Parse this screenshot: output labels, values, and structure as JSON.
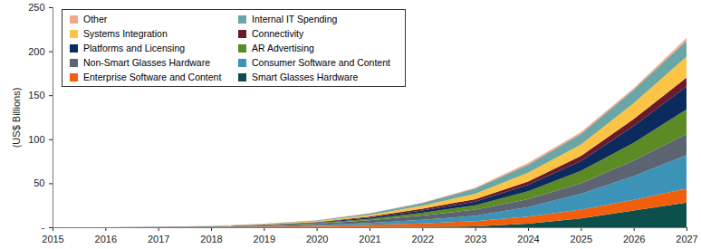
{
  "chart_data": {
    "type": "area",
    "stacked": true,
    "y_label": "(US$ Billions)",
    "x": [
      2015,
      2016,
      2017,
      2018,
      2019,
      2020,
      2021,
      2022,
      2023,
      2024,
      2025,
      2026,
      2027
    ],
    "xlim": [
      2015,
      2027
    ],
    "xticks": [
      2015,
      2016,
      2017,
      2018,
      2019,
      2020,
      2021,
      2022,
      2023,
      2024,
      2025,
      2026,
      2027
    ],
    "ylim": [
      0,
      250
    ],
    "yticks": [
      {
        "value": 0,
        "label": "-"
      },
      50,
      100,
      150,
      200,
      250
    ],
    "grid": false,
    "legend": "top-left",
    "series": [
      {
        "name": "Smart Glasses Hardware",
        "color": "#0d4f4b",
        "values": [
          0,
          0.01,
          0.02,
          0.05,
          0.1,
          0.2,
          0.3,
          0.5,
          1,
          4,
          10,
          19,
          28
        ]
      },
      {
        "name": "Enterprise Software and Content",
        "color": "#f25f0c",
        "values": [
          0,
          0.01,
          0.06,
          0.2,
          0.6,
          1.2,
          2.5,
          4,
          6,
          8,
          10,
          12,
          16
        ]
      },
      {
        "name": "Consumer Software and Content",
        "color": "#3b93b8",
        "values": [
          0,
          0.02,
          0.08,
          0.25,
          0.6,
          1.2,
          2.2,
          4,
          6,
          11,
          18,
          27,
          38
        ]
      },
      {
        "name": "Non-Smart Glasses Hardware",
        "color": "#5b6470",
        "values": [
          0,
          0.02,
          0.1,
          0.3,
          0.8,
          1.5,
          3,
          5,
          7,
          9,
          12,
          18,
          24
        ]
      },
      {
        "name": "AR Advertising",
        "color": "#5c8a24",
        "values": [
          0,
          0.01,
          0.04,
          0.1,
          0.3,
          0.7,
          1.5,
          3,
          5,
          9,
          14,
          20,
          28
        ]
      },
      {
        "name": "Platforms and Licensing",
        "color": "#0b2a5e",
        "values": [
          0,
          0.01,
          0.05,
          0.15,
          0.4,
          0.7,
          1.5,
          2.5,
          4,
          7,
          11,
          19,
          26
        ]
      },
      {
        "name": "Connectivity",
        "color": "#6b1a2c",
        "values": [
          0,
          0.01,
          0.04,
          0.1,
          0.2,
          0.5,
          1,
          2,
          3,
          4,
          6,
          8,
          10
        ]
      },
      {
        "name": "Systems Integration",
        "color": "#fcc444",
        "values": [
          0,
          0.01,
          0.06,
          0.2,
          0.5,
          1,
          2,
          3.5,
          6,
          10,
          13,
          18,
          24
        ]
      },
      {
        "name": "Internal IT Spending",
        "color": "#6ba6a6",
        "values": [
          0,
          0,
          0.03,
          0.1,
          0.4,
          0.8,
          1.7,
          3,
          6,
          9,
          12,
          15,
          18
        ]
      },
      {
        "name": "Other",
        "color": "#f4a68c",
        "values": [
          0,
          0,
          0.02,
          0.05,
          0.1,
          0.2,
          0.3,
          0.5,
          1,
          2,
          2,
          2,
          3
        ]
      }
    ]
  }
}
